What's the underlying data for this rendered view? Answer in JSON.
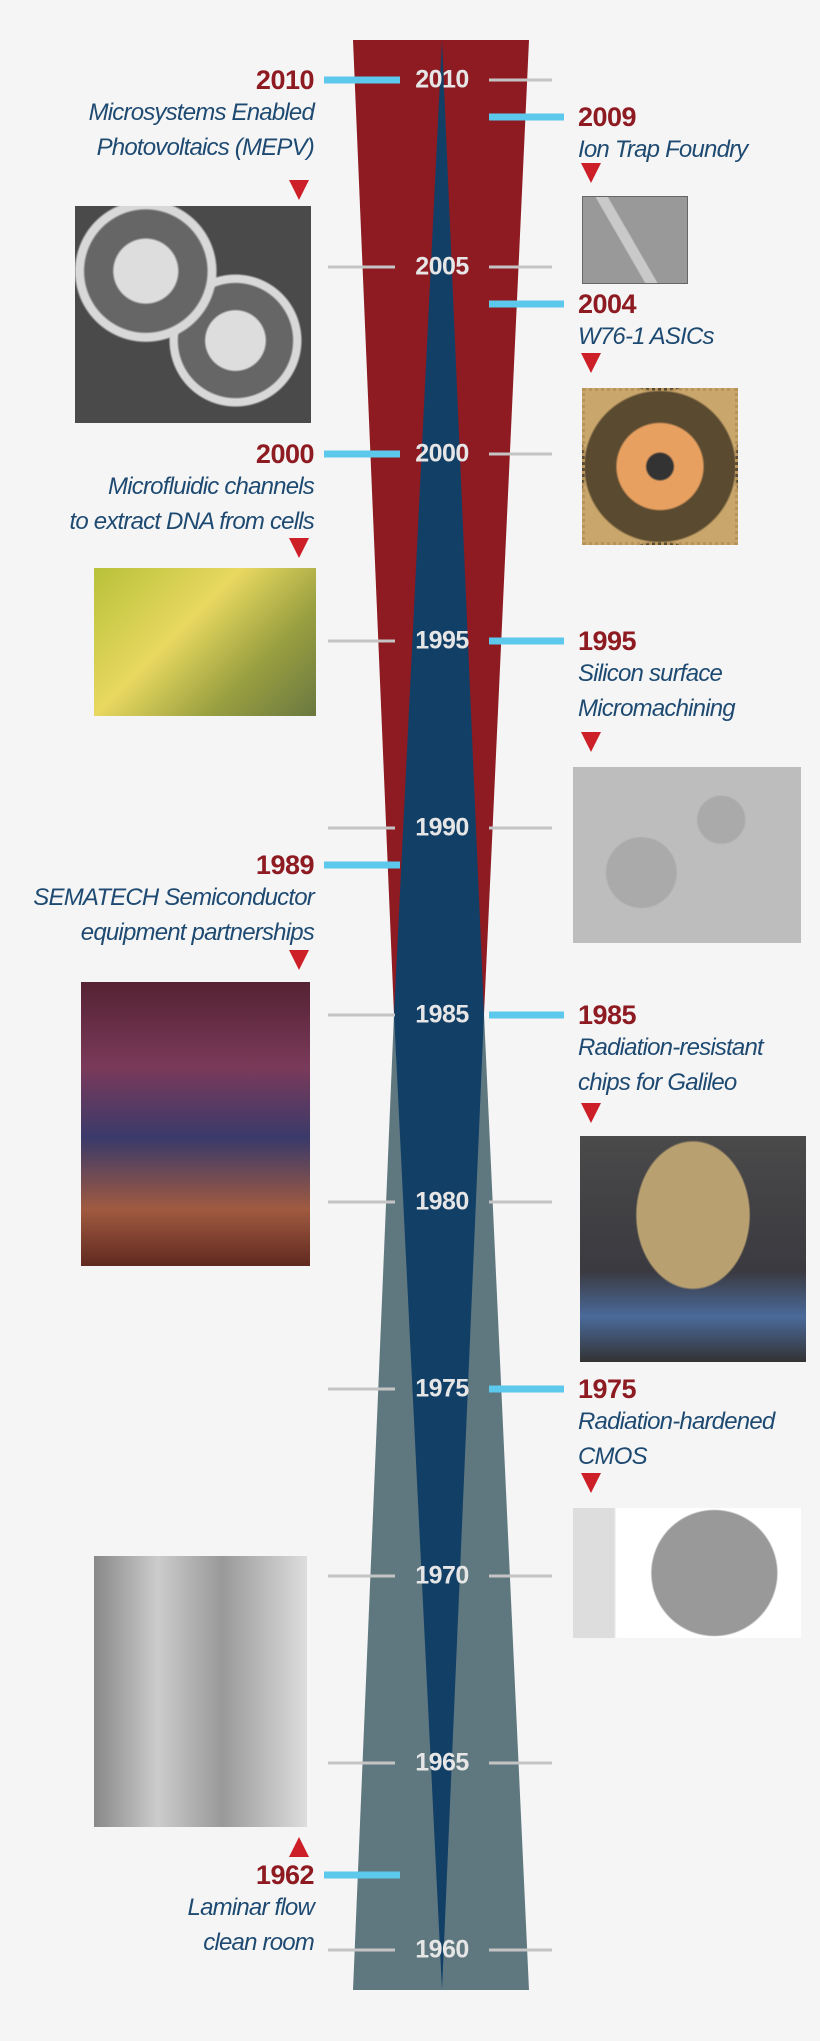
{
  "colors": {
    "red_band": "#8e1b22",
    "blue_band": "#123f66",
    "gray_band": "#5f7880",
    "tick_blue": "#5bc8ec",
    "tick_gray": "#c4c4c4",
    "event_year": "#8e1b22",
    "event_text": "#1e4a72",
    "arrow": "#cc1f27"
  },
  "axis": {
    "years": [
      "2010",
      "2005",
      "2000",
      "1995",
      "1990",
      "1985",
      "1980",
      "1975",
      "1970",
      "1965",
      "1960"
    ]
  },
  "events": [
    {
      "year": "2010",
      "side": "left",
      "lines": [
        "Microsystems Enabled",
        "Photovoltaics (MEPV)"
      ],
      "arrow": "down",
      "image": "mepv-sem-photo"
    },
    {
      "year": "2009",
      "side": "right",
      "lines": [
        "Ion Trap Foundry"
      ],
      "arrow": "down",
      "image": "ion-trap-photo"
    },
    {
      "year": "2004",
      "side": "right",
      "lines": [
        "W76-1 ASICs"
      ],
      "arrow": "down",
      "image": "asic-chip-photo"
    },
    {
      "year": "2000",
      "side": "left",
      "lines": [
        "Microfluidic channels",
        "to extract DNA from cells"
      ],
      "arrow": "down",
      "image": "microfluidic-photo"
    },
    {
      "year": "1995",
      "side": "right",
      "lines": [
        "Silicon surface",
        "Micromachining"
      ],
      "arrow": "down",
      "image": "micromachined-gears-photo"
    },
    {
      "year": "1989",
      "side": "left",
      "lines": [
        "SEMATECH Semiconductor",
        "equipment partnerships"
      ],
      "arrow": "down",
      "image": "sematech-photo"
    },
    {
      "year": "1985",
      "side": "right",
      "lines": [
        "Radiation-resistant",
        "chips for Galileo"
      ],
      "arrow": "down",
      "image": "galileo-photo"
    },
    {
      "year": "1975",
      "side": "right",
      "lines": [
        "Radiation-hardened",
        "CMOS"
      ],
      "arrow": "down",
      "image": "cmos-wafer-photo"
    },
    {
      "year": "1962",
      "side": "left",
      "lines": [
        "Laminar flow",
        "clean room"
      ],
      "arrow": "up",
      "image": "clean-room-photo"
    }
  ]
}
